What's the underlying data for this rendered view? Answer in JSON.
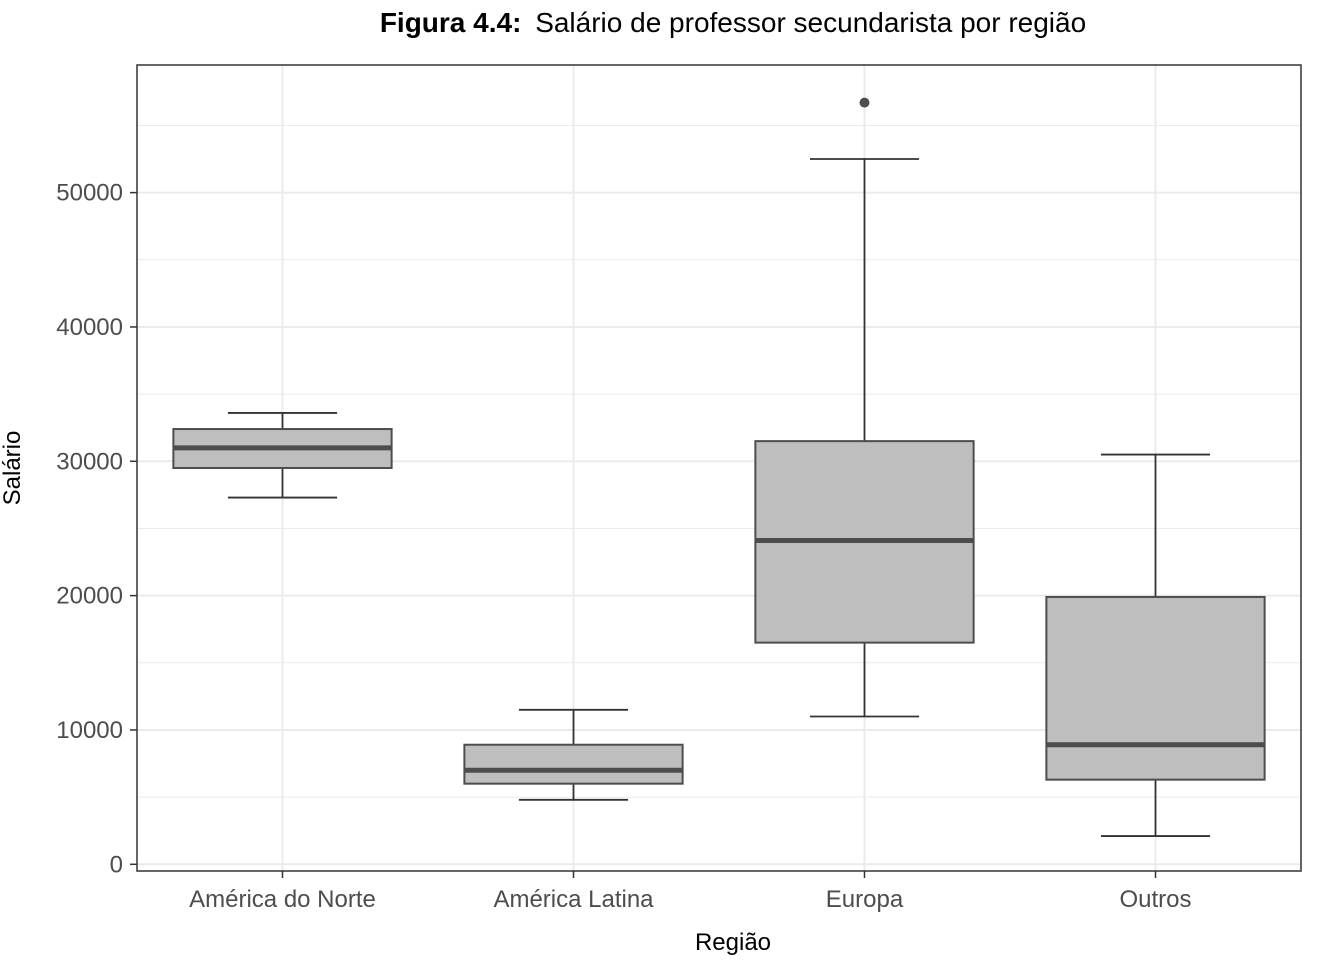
{
  "chart_data": {
    "type": "boxplot",
    "title_prefix": "Figura 4.4:",
    "title_text": "Salário de professor secundarista por região",
    "xlabel": "Região",
    "ylabel": "Salário",
    "ylim": [
      -500,
      59500
    ],
    "yticks": [
      0,
      10000,
      20000,
      30000,
      40000,
      50000
    ],
    "ytick_labels": [
      "0",
      "10000",
      "20000",
      "30000",
      "40000",
      "50000"
    ],
    "grid": true,
    "categories": [
      "América do Norte",
      "América Latina",
      "Europa",
      "Outros"
    ],
    "boxes": [
      {
        "name": "América do Norte",
        "whisker_low": 27300,
        "q1": 29500,
        "median": 31000,
        "q3": 32400,
        "whisker_high": 33600,
        "outliers": []
      },
      {
        "name": "América Latina",
        "whisker_low": 4800,
        "q1": 6000,
        "median": 7000,
        "q3": 8900,
        "whisker_high": 11500,
        "outliers": []
      },
      {
        "name": "Europa",
        "whisker_low": 11000,
        "q1": 16500,
        "median": 24100,
        "q3": 31500,
        "whisker_high": 52500,
        "outliers": [
          56700
        ]
      },
      {
        "name": "Outros",
        "whisker_low": 2100,
        "q1": 6300,
        "median": 8900,
        "q3": 19900,
        "whisker_high": 30500,
        "outliers": []
      }
    ],
    "colors": {
      "box_fill": "#bebebe",
      "box_stroke": "#4d4d4d",
      "grid": "#ebebeb",
      "axis_text": "#4d4d4d",
      "panel_border": "#333333"
    }
  }
}
